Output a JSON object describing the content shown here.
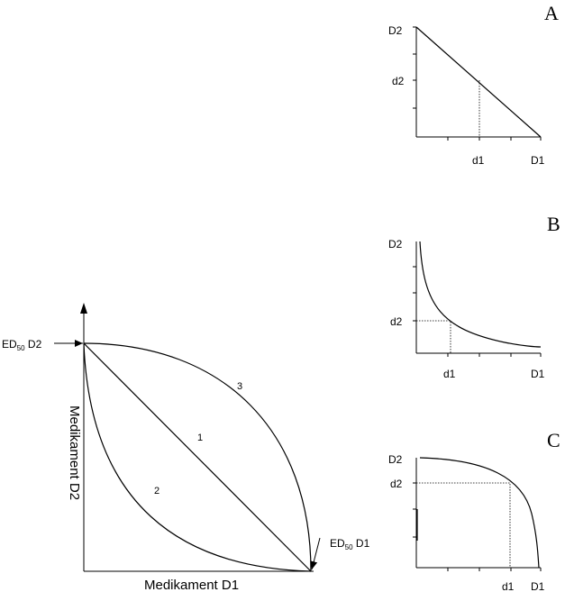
{
  "main_plot": {
    "ed50_d2": "ED",
    "ed50_d2_sub": "50",
    "ed50_d2_suffix": " D2",
    "ed50_d1": "ED",
    "ed50_d1_sub": "50",
    "ed50_d1_suffix": " D1",
    "xlabel": "Medikament D1",
    "ylabel": "Medikament D2",
    "curve1": "1",
    "curve2": "2",
    "curve3": "3"
  },
  "panel_a": {
    "letter": "A",
    "d2_top": "D2",
    "d2_mid": "d2",
    "d1_mid": "d1",
    "d1_end": "D1"
  },
  "panel_b": {
    "letter": "B",
    "d2_top": "D2",
    "d2_mid": "d2",
    "d1_mid": "d1",
    "d1_end": "D1"
  },
  "panel_c": {
    "letter": "C",
    "d2_top": "D2",
    "d2_mid": "d2",
    "d1_mid": "d1",
    "d1_end": "D1"
  }
}
